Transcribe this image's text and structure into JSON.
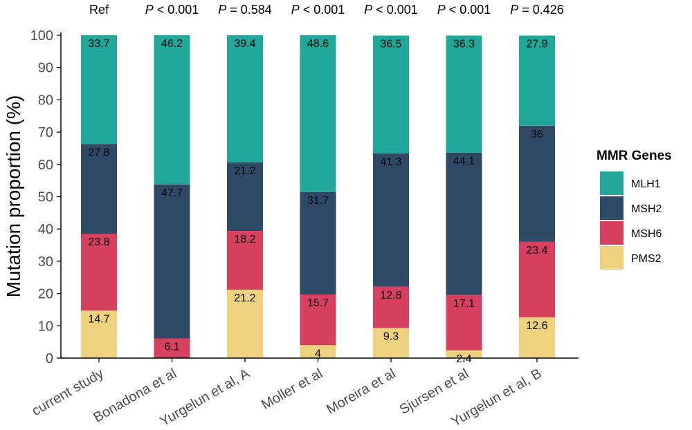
{
  "chart_data": {
    "type": "bar",
    "stacked": true,
    "ylabel": "Mutation proportion (%)",
    "ylim": [
      0,
      100
    ],
    "yticks": [
      0,
      10,
      20,
      30,
      40,
      50,
      60,
      70,
      80,
      90,
      100
    ],
    "categories": [
      "current study",
      "Bonadona et al",
      "Yurgelun et al, A",
      "Moller et al",
      "Moreira et al",
      "Sjursen et al",
      "Yurgelun et al, B"
    ],
    "pvalues": [
      {
        "prefix": "",
        "text": "Ref"
      },
      {
        "prefix": "P",
        "text": " < 0.001"
      },
      {
        "prefix": "P",
        "text": " = 0.584"
      },
      {
        "prefix": "P",
        "text": " < 0.001"
      },
      {
        "prefix": "P",
        "text": " < 0.001"
      },
      {
        "prefix": "P",
        "text": " < 0.001"
      },
      {
        "prefix": "P",
        "text": " = 0.426"
      }
    ],
    "series": [
      {
        "name": "PMS2",
        "color": "#EFD27F",
        "values": [
          14.7,
          0,
          21.2,
          4,
          9.3,
          2.4,
          12.6
        ],
        "labels": [
          "14.7",
          "",
          "21.2",
          "4",
          "9.3",
          "2.4",
          "12.6"
        ]
      },
      {
        "name": "MSH6",
        "color": "#D8405F",
        "values": [
          23.8,
          6.1,
          18.2,
          15.7,
          12.8,
          17.1,
          23.4
        ],
        "labels": [
          "23.8",
          "6.1",
          "18.2",
          "15.7",
          "12.8",
          "17.1",
          "23.4"
        ]
      },
      {
        "name": "MSH2",
        "color": "#2F4A66",
        "values": [
          27.8,
          47.7,
          21.2,
          31.7,
          41.3,
          44.1,
          36
        ],
        "labels": [
          "27.8",
          "47.7",
          "21.2",
          "31.7",
          "41.3",
          "44.1",
          "36"
        ]
      },
      {
        "name": "MLH1",
        "color": "#21A89A",
        "values": [
          33.7,
          46.2,
          39.4,
          48.6,
          36.5,
          36.3,
          27.9
        ],
        "labels": [
          "33.7",
          "46.2",
          "39.4",
          "48.6",
          "36.5",
          "36.3",
          "27.9"
        ]
      }
    ],
    "legend": {
      "title": "MMR Genes",
      "placement": "right",
      "items": [
        "MLH1",
        "MSH2",
        "MSH6",
        "PMS2"
      ]
    }
  }
}
